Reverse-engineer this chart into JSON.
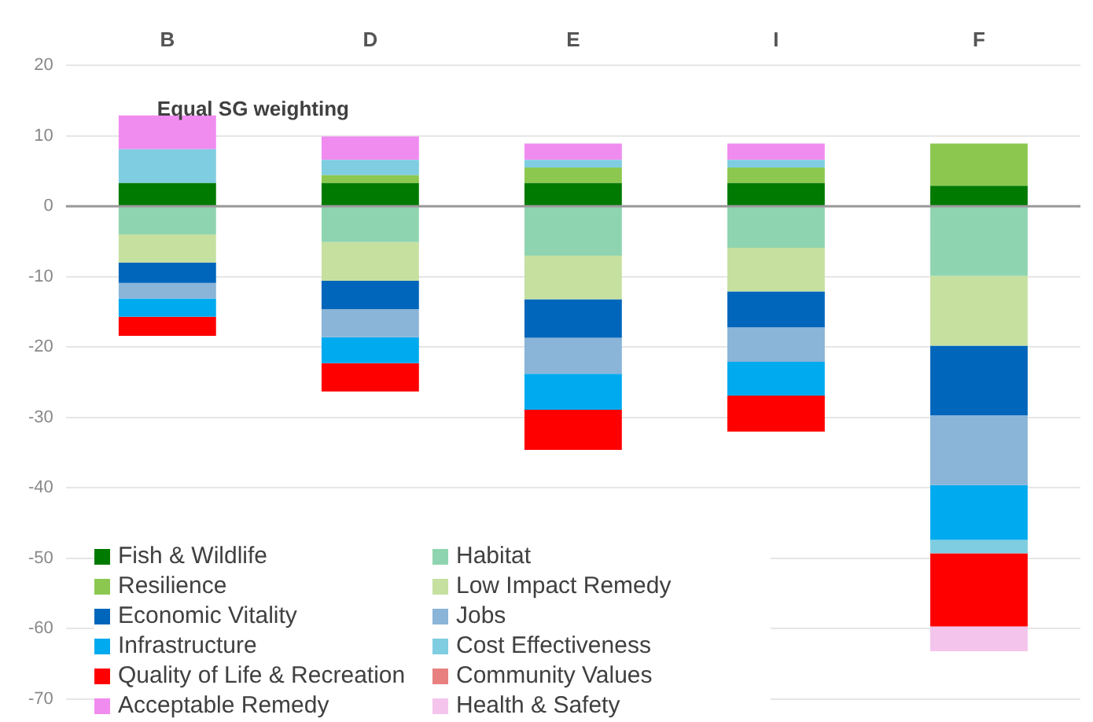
{
  "chart_data": {
    "type": "bar",
    "stacked": true,
    "categories": [
      "B",
      "D",
      "E",
      "I",
      "F"
    ],
    "ylim": [
      -70,
      20
    ],
    "yticks": [
      -70,
      -60,
      -50,
      -40,
      -30,
      -20,
      -10,
      0,
      10,
      20
    ],
    "grid": "y",
    "legend": "bottom left",
    "annotations": [
      "Equal SG weighting"
    ],
    "series": [
      {
        "name": "Fish & Wildlife",
        "color": "#007a00",
        "values": [
          3.3,
          3.3,
          3.3,
          3.3,
          2.9
        ]
      },
      {
        "name": "Habitat",
        "color": "#8fd4b0",
        "values": [
          -4.0,
          -5.1,
          -7.0,
          -5.9,
          -9.9
        ]
      },
      {
        "name": "Resilience",
        "color": "#8cc850",
        "values": [
          null,
          1.1,
          2.2,
          2.2,
          6.0
        ]
      },
      {
        "name": "Low Impact Remedy",
        "color": "#c6e0a0",
        "values": [
          -4.0,
          -5.5,
          -6.2,
          -6.2,
          -9.9
        ]
      },
      {
        "name": "Economic Vitality",
        "color": "#0066bb",
        "values": [
          -2.9,
          -4.0,
          -5.5,
          -5.1,
          -9.9
        ]
      },
      {
        "name": "Jobs",
        "color": "#8ab4d8",
        "values": [
          -2.2,
          -4.0,
          -5.1,
          -4.9,
          -9.9
        ]
      },
      {
        "name": "Infrastructure",
        "color": "#00aaee",
        "values": [
          -2.6,
          -3.7,
          -5.1,
          -4.8,
          -7.8
        ]
      },
      {
        "name": "Cost Effectiveness",
        "color": "#7fcde0",
        "values": [
          4.8,
          2.2,
          1.1,
          1.1,
          -1.9
        ]
      },
      {
        "name": "Quality of Life & Recreation",
        "color": "#ff0000",
        "values": [
          -2.7,
          -4.0,
          -5.7,
          -5.1,
          -10.4
        ]
      },
      {
        "name": "Community Values",
        "color": "#e88080",
        "values": [
          null,
          null,
          null,
          null,
          null
        ]
      },
      {
        "name": "Acceptable Remedy",
        "color": "#f08cf0",
        "values": [
          4.8,
          3.3,
          2.3,
          2.3,
          null
        ]
      },
      {
        "name": "Health & Safety",
        "color": "#f4c4ec",
        "values": [
          null,
          null,
          null,
          null,
          -3.5
        ]
      }
    ]
  }
}
